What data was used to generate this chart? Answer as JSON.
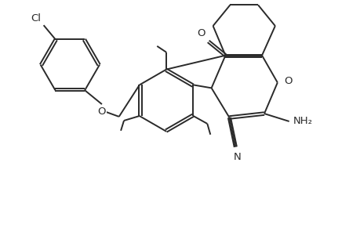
{
  "background": "#ffffff",
  "line_color": "#2a2a2a",
  "line_width": 1.4,
  "font_size": 9.5,
  "figsize": [
    4.6,
    3.0
  ],
  "dpi": 100,
  "xlim": [
    0.0,
    4.6
  ],
  "ylim": [
    0.0,
    3.0
  ]
}
